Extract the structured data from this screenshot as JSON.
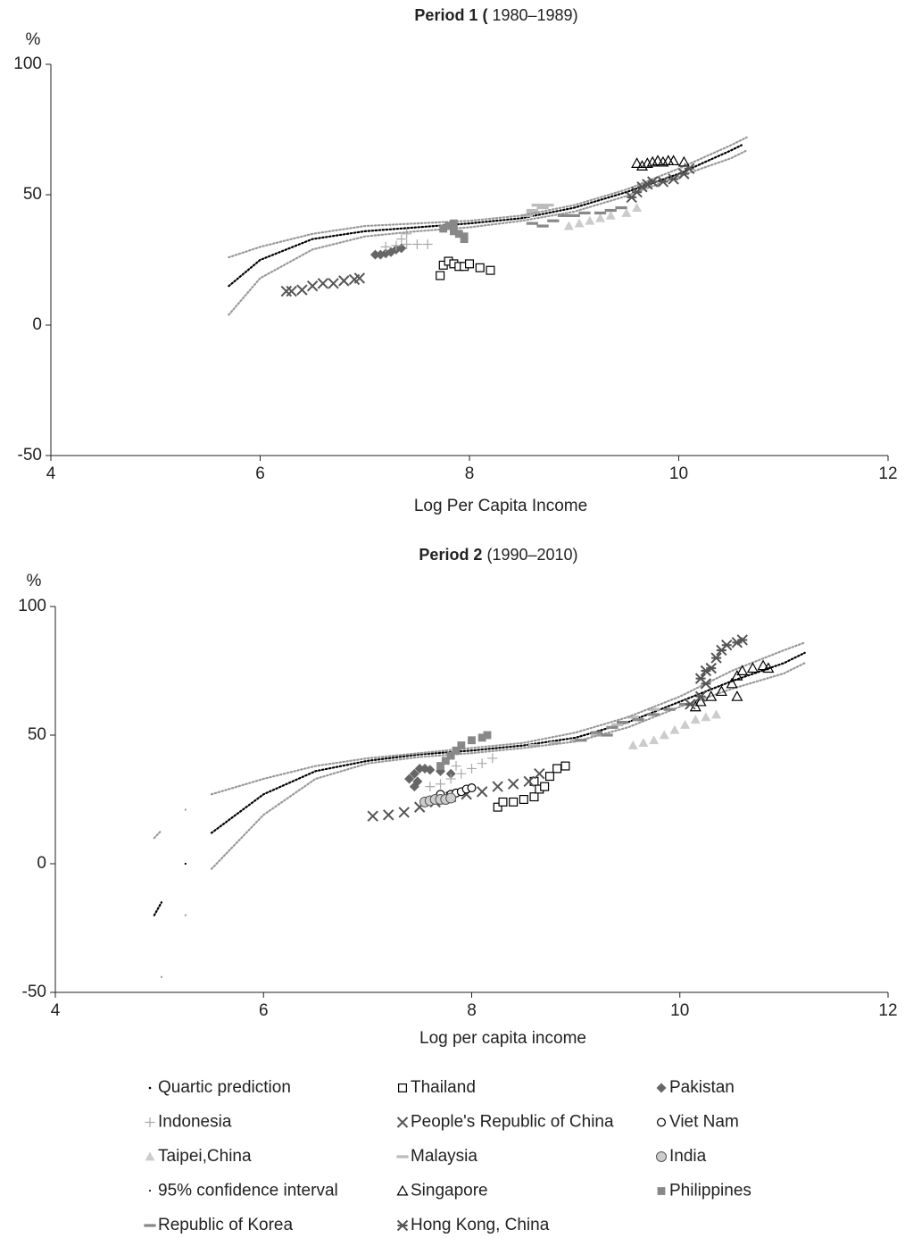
{
  "chart_data": [
    {
      "type": "scatter",
      "title": {
        "bold": "Period 1 (",
        "normal": "1980–1989)"
      },
      "ylabel": "%",
      "xlabel": "Log Per Capita Income",
      "xlim": [
        4,
        12
      ],
      "xticks": [
        4,
        6,
        8,
        10,
        12
      ],
      "ylim": [
        -50,
        100
      ],
      "yticks": [
        100,
        50,
        0,
        -50
      ],
      "series": [
        {
          "name": "Quartic prediction",
          "type": "line",
          "marker": "dot",
          "color": "#000000",
          "x": [
            5.7,
            6,
            6.5,
            7,
            7.5,
            8,
            8.5,
            9,
            9.5,
            10,
            10.5,
            10.6
          ],
          "y": [
            15,
            25,
            33,
            36,
            37.5,
            39,
            41,
            45,
            51,
            58,
            67,
            69
          ]
        },
        {
          "name": "Thailand",
          "marker": "square-open",
          "color": "#000000",
          "x": [
            7.72,
            7.75,
            7.8,
            7.85,
            7.9,
            7.95,
            8,
            8.1,
            8.2
          ],
          "y": [
            19,
            23,
            24.5,
            23.5,
            22.5,
            22.5,
            23.5,
            22,
            21
          ]
        },
        {
          "name": "Pakistan",
          "marker": "diamond",
          "color": "#666666",
          "x": [
            7.1,
            7.15,
            7.2,
            7.25,
            7.3,
            7.35
          ],
          "y": [
            27,
            27,
            27.5,
            28,
            29,
            29.5
          ]
        },
        {
          "name": "Indonesia",
          "marker": "plus",
          "color": "#aaaaaa",
          "x": [
            7.2,
            7.3,
            7.4,
            7.5,
            7.6,
            7.35,
            7.4
          ],
          "y": [
            30,
            30.5,
            31,
            31,
            31,
            33,
            35
          ]
        },
        {
          "name": "People's Republic of China",
          "marker": "cross",
          "color": "#555555",
          "x": [
            6.25,
            6.3,
            6.4,
            6.5,
            6.6,
            6.7,
            6.8,
            6.9,
            6.95
          ],
          "y": [
            13,
            13,
            13.5,
            15,
            16,
            16,
            17,
            17.5,
            18
          ]
        },
        {
          "name": "Taipei,China",
          "marker": "triangle",
          "color": "#cccccc",
          "x": [
            8.95,
            9.05,
            9.15,
            9.25,
            9.35,
            9.5,
            9.6
          ],
          "y": [
            38,
            39,
            40,
            41,
            42,
            43,
            45
          ]
        },
        {
          "name": "Malaysia",
          "marker": "dash",
          "color": "#bbbbbb",
          "x": [
            8.55,
            8.6,
            8.6,
            8.65,
            8.7,
            8.75
          ],
          "y": [
            42,
            43,
            44,
            46,
            45,
            46
          ]
        },
        {
          "name": "95% confidence interval",
          "type": "band",
          "marker": "dot",
          "color": "#999999",
          "x": [
            5.7,
            6,
            6.5,
            7,
            7.5,
            8,
            8.5,
            9,
            9.5,
            10,
            10.5,
            10.65
          ],
          "upper": [
            26,
            30,
            35,
            38,
            39,
            40,
            42,
            46,
            52,
            60,
            69,
            72
          ],
          "lower": [
            4,
            18,
            29,
            34,
            36,
            37.5,
            40,
            43.5,
            49.5,
            57,
            64,
            67
          ]
        },
        {
          "name": "Singapore",
          "marker": "triangle-open",
          "color": "#000000",
          "x": [
            9.6,
            9.65,
            9.7,
            9.75,
            9.8,
            9.85,
            9.9,
            9.95,
            10.05
          ],
          "y": [
            62,
            61,
            62,
            62.5,
            63,
            62.5,
            63,
            63,
            62.5
          ]
        },
        {
          "name": "Philippines",
          "marker": "square",
          "color": "#888888",
          "x": [
            7.75,
            7.8,
            7.85,
            7.85,
            7.9,
            7.95,
            7.95
          ],
          "y": [
            37,
            38,
            39,
            36,
            35,
            33,
            34
          ]
        },
        {
          "name": "Republic of Korea",
          "marker": "dash",
          "color": "#888888",
          "x": [
            8.6,
            8.7,
            8.8,
            8.9,
            9.0,
            9.1,
            9.25,
            9.35,
            9.45
          ],
          "y": [
            39,
            38,
            40,
            42,
            42,
            43,
            43,
            44,
            45
          ]
        },
        {
          "name": "Hong Kong, China",
          "marker": "asterisk",
          "color": "#555555",
          "x": [
            9.55,
            9.6,
            9.65,
            9.7,
            9.75,
            9.85,
            9.95,
            10.05,
            10.1
          ],
          "y": [
            49,
            51,
            53,
            54,
            55,
            55,
            56,
            58,
            60
          ]
        }
      ]
    },
    {
      "type": "scatter",
      "title": {
        "bold": "Period 2",
        "normal": "(1990–2010)"
      },
      "ylabel": "%",
      "xlabel": "Log per capita income",
      "xlim": [
        4,
        12
      ],
      "xticks": [
        4,
        6,
        8,
        10,
        12
      ],
      "ylim": [
        -50,
        100
      ],
      "yticks": [
        100,
        50,
        0,
        -50
      ],
      "series": [
        {
          "name": "Quartic prediction",
          "type": "line",
          "marker": "dot",
          "color": "#000000",
          "x": [
            4.95,
            5.02,
            null,
            5.25,
            null,
            5.5,
            6,
            6.5,
            7,
            7.5,
            8,
            8.5,
            9,
            9.5,
            10,
            10.5,
            11,
            11.2
          ],
          "y": [
            -20,
            -15,
            null,
            0,
            null,
            12,
            27,
            36,
            40,
            42.5,
            44,
            46,
            49,
            55,
            63,
            71,
            78,
            82
          ]
        },
        {
          "name": "Thailand",
          "marker": "square-open",
          "color": "#000000",
          "x": [
            8.25,
            8.3,
            8.4,
            8.5,
            8.6,
            8.6,
            8.65,
            8.7,
            8.75,
            8.82,
            8.9
          ],
          "y": [
            22,
            24,
            24,
            25,
            26,
            32,
            29,
            30,
            34,
            37,
            38
          ]
        },
        {
          "name": "Pakistan",
          "marker": "diamond",
          "color": "#666666",
          "x": [
            7.4,
            7.45,
            7.48,
            7.45,
            7.5,
            7.55,
            7.6,
            7.7,
            7.8
          ],
          "y": [
            33,
            30,
            32,
            35,
            37,
            37,
            36.5,
            36,
            35
          ]
        },
        {
          "name": "Indonesia",
          "marker": "plus",
          "color": "#aaaaaa",
          "x": [
            7.6,
            7.7,
            7.8,
            7.85,
            7.9,
            8,
            8.1,
            8.2
          ],
          "y": [
            30,
            31,
            33,
            38,
            35,
            37,
            39,
            41
          ]
        },
        {
          "name": "People's Republic of China",
          "marker": "cross",
          "color": "#555555",
          "x": [
            7.05,
            7.2,
            7.35,
            7.5,
            7.65,
            7.8,
            7.95,
            8.1,
            8.25,
            8.4,
            8.55,
            8.65
          ],
          "y": [
            18.5,
            19,
            20,
            22,
            24,
            26,
            27,
            28,
            30,
            31,
            32,
            35
          ]
        },
        {
          "name": "Viet Nam",
          "marker": "circle-open",
          "color": "#000000",
          "x": [
            7.7,
            7.8,
            7.85,
            7.9,
            7.95,
            8
          ],
          "y": [
            27,
            27,
            27.5,
            28,
            29,
            29.5
          ]
        },
        {
          "name": "Taipei,China",
          "marker": "triangle",
          "color": "#cccccc",
          "x": [
            9.55,
            9.65,
            9.75,
            9.85,
            9.95,
            10.05,
            10.15,
            10.25,
            10.35
          ],
          "y": [
            46,
            47,
            48,
            50,
            52,
            54,
            56,
            57,
            58
          ]
        },
        {
          "name": "Malaysia",
          "marker": "dash",
          "color": "#bbbbbb",
          "x": [
            8.6,
            8.8,
            9.0,
            9.2,
            9.4,
            9.55,
            9.6,
            9.75
          ],
          "y": [
            46,
            47,
            48,
            50,
            54,
            57,
            56,
            60
          ]
        },
        {
          "name": "India",
          "marker": "circle",
          "color": "#cccccc",
          "x": [
            7.55,
            7.6,
            7.65,
            7.7,
            7.75,
            7.8
          ],
          "y": [
            24,
            24.5,
            25,
            25,
            25,
            25.5
          ]
        },
        {
          "name": "95% confidence interval",
          "type": "band",
          "marker": "dot",
          "color": "#999999",
          "x": [
            4.95,
            5.02,
            null,
            5.25,
            null,
            5.5,
            6,
            6.5,
            7,
            7.5,
            8,
            8.5,
            9,
            9.5,
            10,
            10.5,
            11,
            11.2
          ],
          "upper": [
            10,
            13,
            null,
            21,
            null,
            27,
            33,
            38,
            41,
            43,
            45,
            47,
            51,
            57,
            65,
            75,
            83,
            86
          ],
          "lower": [
            null,
            -44,
            null,
            -20,
            null,
            -2,
            19,
            33,
            39,
            41.5,
            43,
            45,
            47.5,
            53,
            61,
            68,
            74,
            78
          ]
        },
        {
          "name": "Singapore",
          "marker": "triangle-open",
          "color": "#000000",
          "x": [
            10.15,
            10.2,
            10.3,
            10.4,
            10.5,
            10.55,
            10.55,
            10.6,
            10.7,
            10.8,
            10.85
          ],
          "y": [
            61,
            63,
            65,
            67,
            70,
            65,
            73,
            75,
            76,
            77,
            76
          ]
        },
        {
          "name": "Philippines",
          "marker": "square",
          "color": "#888888",
          "x": [
            7.7,
            7.75,
            7.8,
            7.85,
            7.9,
            8.0,
            8.1,
            8.15
          ],
          "y": [
            38,
            40,
            42,
            44,
            46,
            48,
            49,
            50
          ]
        },
        {
          "name": "Republic of Korea",
          "marker": "dash",
          "color": "#888888",
          "x": [
            9.05,
            9.2,
            9.3,
            9.35,
            9.45,
            9.6,
            9.75,
            9.9,
            10.05
          ],
          "y": [
            48,
            51,
            50,
            53,
            55,
            56,
            58,
            60,
            62
          ]
        },
        {
          "name": "Hong Kong, China",
          "marker": "asterisk",
          "color": "#555555",
          "x": [
            10.1,
            10.2,
            10.2,
            10.25,
            10.25,
            10.3,
            10.35,
            10.4,
            10.45,
            10.55,
            10.6
          ],
          "y": [
            62,
            65,
            72,
            70,
            75,
            76,
            80,
            83,
            85,
            86,
            87
          ]
        }
      ]
    }
  ]
}
